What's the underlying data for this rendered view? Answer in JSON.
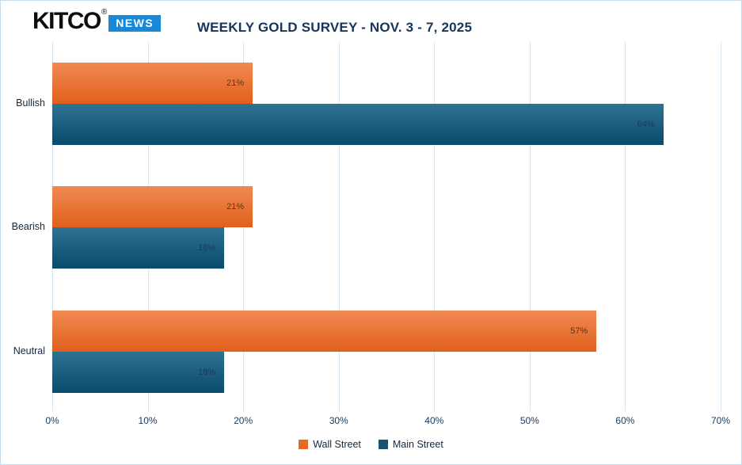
{
  "header": {
    "logo": {
      "brand": "KITCO",
      "registered": "®",
      "news": "NEWS",
      "news_bg": "#1789d8"
    },
    "title": "WEEKLY GOLD SURVEY - NOV. 3 - 7, 2025"
  },
  "chart_data": {
    "type": "bar",
    "orientation": "horizontal",
    "title": "WEEKLY GOLD SURVEY - NOV. 3 - 7, 2025",
    "categories": [
      "Bullish",
      "Bearish",
      "Neutral"
    ],
    "series": [
      {
        "name": "Wall Street",
        "values": [
          21,
          21,
          57
        ],
        "gradient_top": "#f08a53",
        "gradient_bottom": "#e0601c",
        "legend_color": "#e56826",
        "label_color": "#4a392a"
      },
      {
        "name": "Main Street",
        "values": [
          64,
          18,
          18
        ],
        "gradient_top": "#2f7292",
        "gradient_bottom": "#0a4a6c",
        "legend_color": "#185472",
        "label_color": "#1c3a50"
      }
    ],
    "value_suffix": "%",
    "xlabel": "",
    "ylabel": "",
    "xlim": [
      0,
      70
    ],
    "x_ticks": [
      "0%",
      "10%",
      "20%",
      "30%",
      "40%",
      "50%",
      "60%",
      "70%"
    ],
    "grid": true,
    "grid_color": "#d7e5f1",
    "legend_position": "bottom"
  }
}
